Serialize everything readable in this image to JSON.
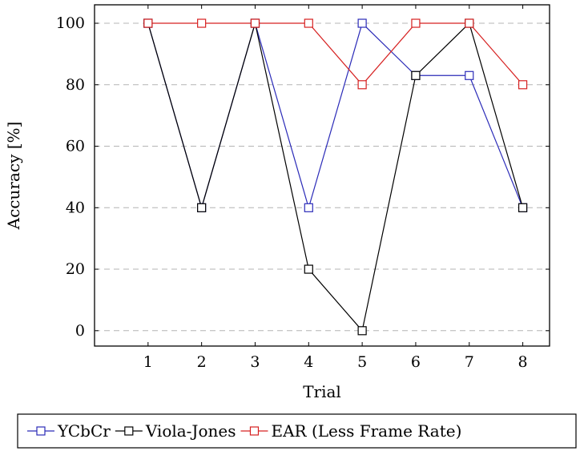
{
  "chart_data": {
    "type": "line",
    "xlabel": "Trial",
    "ylabel": "Accuracy [%]",
    "x": [
      1,
      2,
      3,
      4,
      5,
      6,
      7,
      8
    ],
    "xlim": [
      0,
      8.5
    ],
    "ylim": [
      -5,
      106
    ],
    "xticks": [
      1,
      2,
      3,
      4,
      5,
      6,
      7,
      8
    ],
    "yticks": [
      0,
      20,
      40,
      60,
      80,
      100
    ],
    "grid": "horizontal dashed",
    "legend_position": "below",
    "marker": "square",
    "series": [
      {
        "name": "YCbCr",
        "color": "#2b2bb8",
        "values": [
          100,
          40,
          100,
          40,
          100,
          83,
          83,
          40
        ]
      },
      {
        "name": "Viola-Jones",
        "color": "#000000",
        "values": [
          100,
          40,
          100,
          20,
          0,
          83,
          100,
          40
        ]
      },
      {
        "name": "EAR (Less Frame Rate)",
        "color": "#d62020",
        "values": [
          100,
          100,
          100,
          100,
          80,
          100,
          100,
          80
        ]
      }
    ]
  }
}
